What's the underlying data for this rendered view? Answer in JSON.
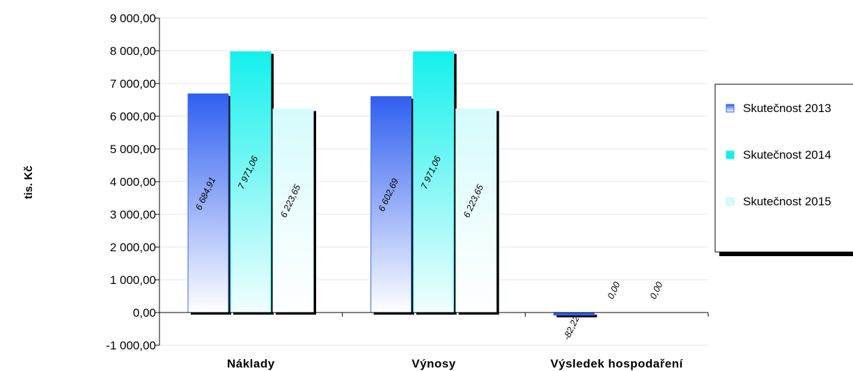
{
  "chart_data": {
    "type": "bar",
    "title": "",
    "xlabel": "",
    "ylabel": "tis. Kč",
    "categories": [
      "Náklady",
      "Výnosy",
      "Výsledek hospodaření"
    ],
    "series": [
      {
        "name": "Skutečnost 2013",
        "values": [
          6684.91,
          6602.69,
          -82.22
        ],
        "labels": [
          "6 684,91",
          "6 602,69",
          "-82,22"
        ],
        "color": "#2f5ff0"
      },
      {
        "name": "Skutečnost 2014",
        "values": [
          7971.06,
          7971.06,
          0
        ],
        "labels": [
          "7 971,06",
          "7 971,06",
          "0,00"
        ],
        "color": "#14f0ec"
      },
      {
        "name": "Skutečnost 2015",
        "values": [
          6223.65,
          6223.65,
          0
        ],
        "labels": [
          "6 223,65",
          "6 223,65",
          "0,00"
        ],
        "color": "#d6fbfb"
      }
    ],
    "ylim": [
      -1000,
      9000
    ],
    "yticks": [
      -1000,
      0,
      1000,
      2000,
      3000,
      4000,
      5000,
      6000,
      7000,
      8000,
      9000
    ],
    "ytick_labels": [
      "-1 000,00",
      "0,00",
      "1 000,00",
      "2 000,00",
      "3 000,00",
      "4 000,00",
      "5 000,00",
      "6 000,00",
      "7 000,00",
      "8 000,00",
      "9 000,00"
    ],
    "grid": true,
    "legend_position": "right"
  }
}
